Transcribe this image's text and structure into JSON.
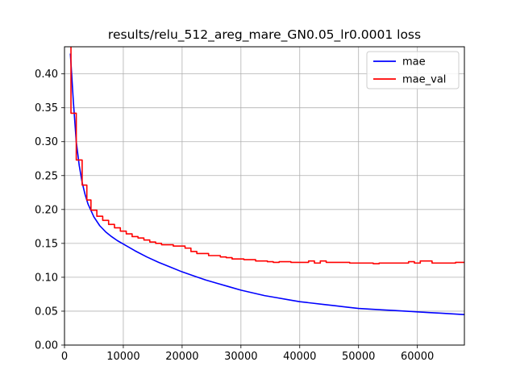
{
  "chart_data": {
    "type": "line",
    "title": "results/relu_512_areg_mare_GN0.05_lr0.0001 loss",
    "xlabel": "",
    "ylabel": "",
    "xlim": [
      0,
      68000
    ],
    "ylim": [
      0.0,
      0.44
    ],
    "xticks": [
      0,
      10000,
      20000,
      30000,
      40000,
      50000,
      60000
    ],
    "xtick_labels": [
      "0",
      "10000",
      "20000",
      "30000",
      "40000",
      "50000",
      "60000"
    ],
    "yticks": [
      0.0,
      0.05,
      0.1,
      0.15,
      0.2,
      0.25,
      0.3,
      0.35,
      0.4
    ],
    "ytick_labels": [
      "0.00",
      "0.05",
      "0.10",
      "0.15",
      "0.20",
      "0.25",
      "0.30",
      "0.35",
      "0.40"
    ],
    "grid": true,
    "legend_position": "top-right",
    "series": [
      {
        "name": "mae",
        "color": "#0000ff",
        "x": [
          1000,
          1500,
          2000,
          2500,
          3000,
          3500,
          4000,
          5000,
          6000,
          7000,
          8000,
          9000,
          10000,
          12000,
          14000,
          16000,
          18000,
          20000,
          22000,
          24000,
          26000,
          28000,
          30000,
          32000,
          34000,
          36000,
          38000,
          40000,
          42000,
          44000,
          46000,
          48000,
          50000,
          52000,
          54000,
          56000,
          58000,
          60000,
          62000,
          64000,
          66000,
          68000
        ],
        "y": [
          0.43,
          0.36,
          0.3,
          0.265,
          0.24,
          0.222,
          0.208,
          0.189,
          0.176,
          0.167,
          0.16,
          0.154,
          0.149,
          0.139,
          0.13,
          0.122,
          0.115,
          0.108,
          0.102,
          0.096,
          0.091,
          0.086,
          0.081,
          0.077,
          0.073,
          0.07,
          0.067,
          0.064,
          0.062,
          0.06,
          0.058,
          0.056,
          0.054,
          0.053,
          0.052,
          0.051,
          0.05,
          0.049,
          0.048,
          0.047,
          0.046,
          0.045
        ]
      },
      {
        "name": "mae_val",
        "color": "#ff0000",
        "step": true,
        "x": [
          1000,
          1100,
          2000,
          3000,
          3800,
          4500,
          5500,
          6500,
          7500,
          8500,
          9500,
          10500,
          11500,
          12500,
          13500,
          14500,
          15500,
          16500,
          18500,
          20500,
          21500,
          22500,
          24500,
          26500,
          27500,
          28500,
          30500,
          32500,
          34500,
          35500,
          36500,
          38500,
          40500,
          41500,
          42500,
          43500,
          44500,
          47500,
          48500,
          50500,
          52500,
          53500,
          55500,
          57500,
          58500,
          59500,
          60500,
          62500,
          64500,
          66500,
          68000
        ],
        "y": [
          0.44,
          0.342,
          0.273,
          0.236,
          0.214,
          0.199,
          0.19,
          0.184,
          0.178,
          0.173,
          0.168,
          0.164,
          0.16,
          0.158,
          0.155,
          0.152,
          0.15,
          0.148,
          0.146,
          0.143,
          0.138,
          0.135,
          0.132,
          0.13,
          0.129,
          0.127,
          0.126,
          0.124,
          0.123,
          0.122,
          0.123,
          0.122,
          0.122,
          0.124,
          0.121,
          0.124,
          0.122,
          0.122,
          0.121,
          0.121,
          0.12,
          0.121,
          0.121,
          0.121,
          0.123,
          0.121,
          0.124,
          0.121,
          0.121,
          0.122,
          0.121
        ]
      }
    ]
  }
}
